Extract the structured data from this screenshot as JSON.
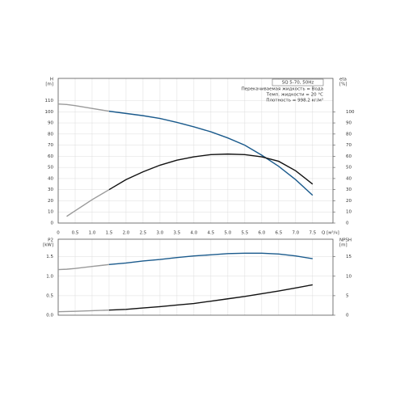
{
  "chart_data": [
    {
      "type": "line",
      "title": "SQ 5-70, 50Hz",
      "notes": [
        "Перекачиваемая жидкость = Вода",
        "Темп. жидкости = 20 °C",
        "Плотность = 998.2 кг/м³"
      ],
      "ylabel": [
        "H",
        "[m]"
      ],
      "y2label": [
        "eta",
        "[%]"
      ],
      "xlabel": "Q [м³/ч]",
      "x": [
        0,
        0.25,
        0.5,
        1,
        1.5,
        2,
        2.5,
        3,
        3.5,
        4,
        4.5,
        5,
        5.5,
        6,
        6.5,
        7,
        7.5
      ],
      "xlim": [
        0,
        8.1
      ],
      "xticks": [
        {
          "value": 0,
          "label": "0"
        },
        0.5,
        {
          "value": 1,
          "label": "1.0"
        },
        1.5,
        {
          "value": 2,
          "label": "2.0"
        },
        2.5,
        {
          "value": 3,
          "label": "3.0"
        },
        3.5,
        {
          "value": 4,
          "label": "4.0"
        },
        4.5,
        {
          "value": 5,
          "label": "5.0"
        },
        5.5,
        {
          "value": 6,
          "label": "6.0"
        },
        6.5,
        {
          "value": 7,
          "label": "7.0"
        },
        7.5
      ],
      "ylim": [
        0,
        130
      ],
      "yticks": [
        0,
        10,
        20,
        30,
        40,
        50,
        60,
        70,
        80,
        90,
        100,
        110
      ],
      "y2lim": [
        0,
        130
      ],
      "y2ticks": [
        0,
        10,
        20,
        30,
        40,
        50,
        60,
        70,
        80,
        90,
        100
      ],
      "grid": true,
      "series": [
        {
          "color": "#9a9a9a",
          "values": [
            107,
            106.5,
            105.5,
            103,
            100.5,
            null,
            null,
            null,
            null,
            null,
            null,
            null,
            null,
            null,
            null,
            null,
            null
          ]
        },
        {
          "color": "#1a5a8c",
          "values": [
            null,
            null,
            null,
            null,
            100.5,
            98.5,
            96.5,
            94,
            90.5,
            86.5,
            82,
            76.5,
            70,
            61,
            51,
            39,
            25
          ]
        },
        {
          "color": "#9a9a9a",
          "axis": "y2",
          "values": [
            null,
            6,
            11,
            21,
            30,
            null,
            null,
            null,
            null,
            null,
            null,
            null,
            null,
            null,
            null,
            null,
            null
          ]
        },
        {
          "color": "#111111",
          "axis": "y2",
          "values": [
            null,
            null,
            null,
            null,
            30,
            39,
            46,
            52,
            56.5,
            59.5,
            61.5,
            62,
            61.5,
            59.5,
            55.5,
            47,
            35
          ]
        }
      ]
    },
    {
      "type": "line",
      "ylabel": [
        "P2",
        "[kW]"
      ],
      "y2label": [
        "NPSH",
        "[m]"
      ],
      "x": [
        0,
        0.25,
        0.5,
        1,
        1.5,
        2,
        2.5,
        3,
        3.5,
        4,
        4.5,
        5,
        5.5,
        6,
        6.5,
        7,
        7.5
      ],
      "xlim": [
        0,
        8.1
      ],
      "ylim": [
        0,
        1.95
      ],
      "yticks": [
        {
          "value": 0,
          "label": "0.0"
        },
        0.5,
        {
          "value": 1,
          "label": "1.0"
        },
        1.5
      ],
      "y2lim": [
        0,
        19.5
      ],
      "y2ticks": [
        0,
        5,
        10,
        15
      ],
      "grid": true,
      "series": [
        {
          "color": "#9a9a9a",
          "values": [
            1.17,
            1.18,
            1.2,
            1.25,
            1.3,
            null,
            null,
            null,
            null,
            null,
            null,
            null,
            null,
            null,
            null,
            null,
            null
          ]
        },
        {
          "color": "#1a5a8c",
          "values": [
            null,
            null,
            null,
            null,
            1.3,
            1.34,
            1.39,
            1.43,
            1.48,
            1.52,
            1.55,
            1.58,
            1.59,
            1.59,
            1.57,
            1.52,
            1.45
          ]
        },
        {
          "color": "#9a9a9a",
          "axis": "y2",
          "values": [
            0.9,
            0.95,
            1.0,
            1.15,
            1.3,
            null,
            null,
            null,
            null,
            null,
            null,
            null,
            null,
            null,
            null,
            null,
            null
          ]
        },
        {
          "color": "#111111",
          "axis": "y2",
          "values": [
            null,
            null,
            null,
            null,
            1.3,
            1.5,
            1.85,
            2.2,
            2.6,
            3.0,
            3.6,
            4.2,
            4.8,
            5.5,
            6.2,
            7.0,
            7.8
          ]
        }
      ]
    }
  ]
}
